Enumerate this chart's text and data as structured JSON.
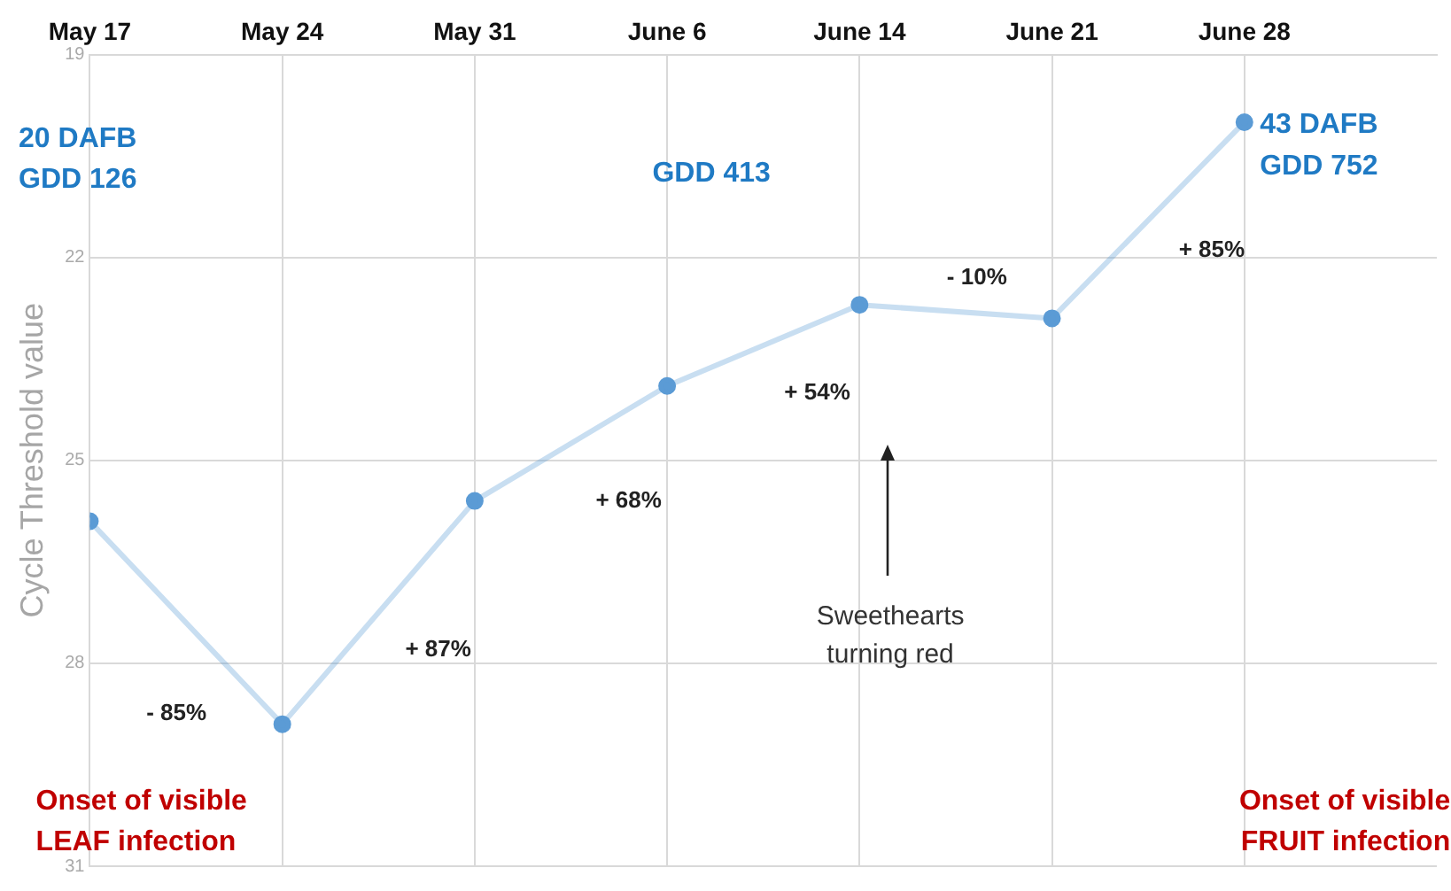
{
  "chart_data": {
    "type": "line",
    "ylabel": "Cycle Threshold value",
    "categories": [
      "May 17",
      "May 24",
      "May 31",
      "June 6",
      "June 14",
      "June 21",
      "June 28"
    ],
    "series": [
      {
        "color": "#5b9bd5",
        "values": [
          25.9,
          28.9,
          25.6,
          23.9,
          22.7,
          22.9,
          20.0
        ]
      }
    ],
    "ylim": [
      31,
      19
    ],
    "yticks": [
      19,
      22,
      25,
      28,
      31
    ],
    "grid": true,
    "marker": "circle",
    "annotations": [
      "20 DAFB\nGDD 126",
      "GDD 413",
      "43 DAFB\nGDD 752",
      "- 85%",
      "+ 87%",
      "+ 68%",
      "+ 54%",
      "- 10%",
      "+ 85%",
      "Sweethearts\nturning red",
      "Onset of visible\nLEAF infection",
      "Onset of visible\nFRUIT infection"
    ]
  }
}
